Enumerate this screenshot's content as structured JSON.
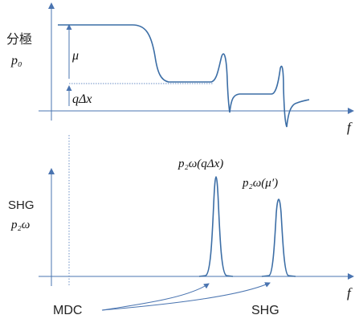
{
  "top_panel": {
    "ylabel_line1": "分極",
    "ylabel_line2": "p₀",
    "mu_label": "μ",
    "qdx_label": "qΔx",
    "xlabel": "f"
  },
  "bottom_panel": {
    "ylabel_line1": "SHG",
    "ylabel_line2": "p₂ω",
    "peak1_label": "p₂ω(qΔx)",
    "peak2_label": "p₂ω(μ′)",
    "xlabel": "f"
  },
  "annotations": {
    "mdc": "MDC",
    "shg": "SHG"
  },
  "colors": {
    "axis": "#4a74b0",
    "curve": "#3c6ea6"
  }
}
